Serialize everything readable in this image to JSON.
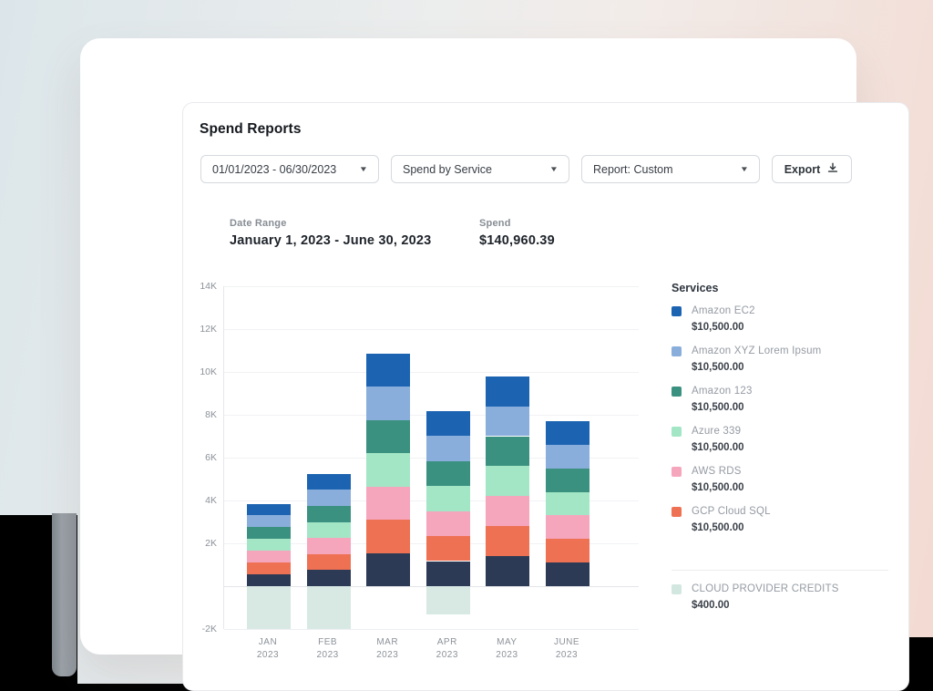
{
  "header": {
    "title": "Spend Reports"
  },
  "toolbar": {
    "date_range_dropdown": {
      "value": "01/01/2023 - 06/30/2023",
      "caret": "▼"
    },
    "view_dropdown": {
      "value": "Spend by Service",
      "caret": "▼"
    },
    "report_dropdown": {
      "value": "Report: Custom",
      "caret": "▼"
    },
    "export": {
      "label": "Export",
      "icon": "download-icon"
    }
  },
  "summary": {
    "date_range_label": "Date Range",
    "date_range_value": "January 1, 2023 - June 30, 2023",
    "spend_label": "Spend",
    "spend_value": "$140,960.39"
  },
  "legend": {
    "title": "Services",
    "items": [
      {
        "name": "Amazon EC2",
        "amount": "$10,500.00",
        "color": "#1c64b2"
      },
      {
        "name": "Amazon XYZ Lorem Ipsum",
        "amount": "$10,500.00",
        "color": "#8aaedb"
      },
      {
        "name": "Amazon 123",
        "amount": "$10,500.00",
        "color": "#3b9180"
      },
      {
        "name": "Azure 339",
        "amount": "$10,500.00",
        "color": "#a2e6c6"
      },
      {
        "name": "AWS RDS",
        "amount": "$10,500.00",
        "color": "#f5a6bd"
      },
      {
        "name": "GCP Cloud SQL",
        "amount": "$10,500.00",
        "color": "#ef7154"
      }
    ],
    "credits_item": {
      "name": "CLOUD PROVIDER CREDITS",
      "amount": "$400.00",
      "color": "#d3e7e1"
    }
  },
  "chart_data": {
    "type": "bar",
    "stacked": true,
    "title": "",
    "xlabel": "",
    "ylabel": "",
    "categories": [
      "JAN 2023",
      "FEB 2023",
      "MAR 2023",
      "APR 2023",
      "MAY 2023",
      "JUNE 2023"
    ],
    "category_lines": [
      [
        "JAN",
        "2023"
      ],
      [
        "FEB",
        "2023"
      ],
      [
        "MAR",
        "2023"
      ],
      [
        "APR",
        "2023"
      ],
      [
        "MAY",
        "2023"
      ],
      [
        "JUNE",
        "2023"
      ]
    ],
    "series_bottom_to_top": [
      {
        "name": "unlabeled-service",
        "color": "#2c3a55",
        "values": [
          550,
          750,
          1550,
          1170,
          1400,
          1100
        ]
      },
      {
        "name": "GCP Cloud SQL",
        "color": "#ef7154",
        "values": [
          550,
          750,
          1550,
          1170,
          1400,
          1100
        ]
      },
      {
        "name": "AWS RDS",
        "color": "#f5a6bd",
        "values": [
          550,
          750,
          1550,
          1170,
          1400,
          1100
        ]
      },
      {
        "name": "Azure 339",
        "color": "#a2e6c6",
        "values": [
          550,
          750,
          1550,
          1170,
          1400,
          1100
        ]
      },
      {
        "name": "Amazon 123",
        "color": "#3b9180",
        "values": [
          550,
          750,
          1550,
          1170,
          1400,
          1100
        ]
      },
      {
        "name": "Amazon XYZ Lorem Ipsum",
        "color": "#8aaedb",
        "values": [
          550,
          750,
          1550,
          1170,
          1400,
          1100
        ]
      },
      {
        "name": "Amazon EC2",
        "color": "#1c64b2",
        "values": [
          550,
          750,
          1550,
          1170,
          1400,
          1100
        ]
      }
    ],
    "negative_series": {
      "name": "CLOUD PROVIDER CREDITS",
      "color": "#d8e9e4",
      "values": [
        -2000,
        -2000,
        0,
        -1300,
        0,
        0
      ]
    },
    "month_totals_positive": [
      3850,
      5250,
      10850,
      8190,
      9800,
      7700
    ],
    "ylim": [
      -2000,
      14000
    ],
    "yticks": [
      {
        "v": 14000,
        "label": "14K"
      },
      {
        "v": 12000,
        "label": "12K"
      },
      {
        "v": 10000,
        "label": "10K"
      },
      {
        "v": 8000,
        "label": "8K"
      },
      {
        "v": 6000,
        "label": "6K"
      },
      {
        "v": 4000,
        "label": "4K"
      },
      {
        "v": 2000,
        "label": "2K"
      },
      {
        "v": 0,
        "label": ""
      },
      {
        "v": -2000,
        "label": "-2K"
      }
    ],
    "grid": true,
    "legend_position": "right"
  },
  "colors": {
    "background_left": "#dce6ea",
    "background_right": "#f3dad2",
    "card": "#ffffff",
    "card_border": "#e8eaee",
    "gridline": "#f1f2f5",
    "axis_text": "#8c9299"
  }
}
